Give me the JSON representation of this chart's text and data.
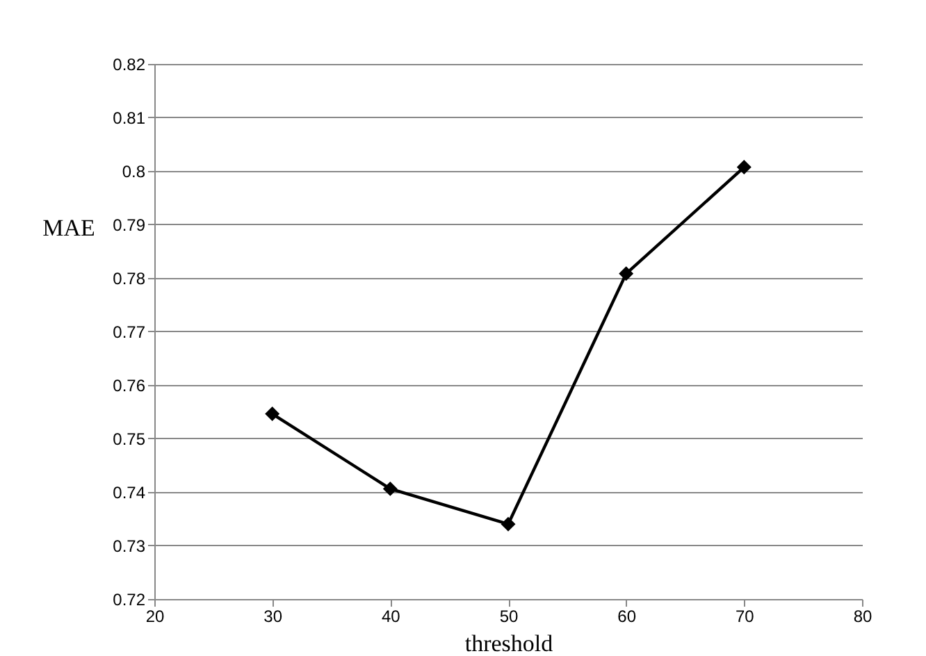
{
  "chart_data": {
    "type": "line",
    "xlabel": "threshold",
    "ylabel": "MAE",
    "x": [
      30,
      40,
      50,
      60,
      70
    ],
    "series": [
      {
        "color": "#000000",
        "values": [
          0.7546,
          0.7406,
          0.734,
          0.7808,
          0.8007
        ]
      }
    ],
    "xlim": [
      20,
      80
    ],
    "xticks": [
      20,
      30,
      40,
      50,
      60,
      70,
      80
    ],
    "ylim": [
      0.72,
      0.82
    ],
    "yticks": [
      0.72,
      0.73,
      0.74,
      0.75,
      0.76,
      0.77,
      0.78,
      0.79,
      0.8,
      0.81,
      0.82
    ],
    "grid": "y",
    "marker": "diamond",
    "line_style": "solid"
  }
}
